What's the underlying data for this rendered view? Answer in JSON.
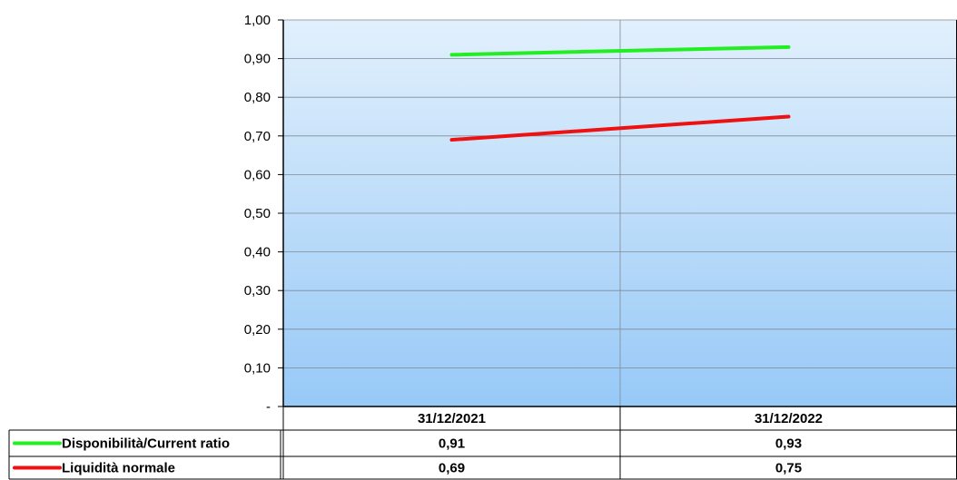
{
  "chart_data": {
    "type": "line",
    "categories": [
      "31/12/2021",
      "31/12/2022"
    ],
    "series": [
      {
        "name": "Disponibilità/Current ratio",
        "values": [
          0.91,
          0.93
        ],
        "color": "#22ee22"
      },
      {
        "name": "Liquidità normale",
        "values": [
          0.69,
          0.75
        ],
        "color": "#ee1111"
      }
    ],
    "y_ticks": [
      {
        "value": 0,
        "label": "-"
      },
      {
        "value": 0.1,
        "label": "0,10"
      },
      {
        "value": 0.2,
        "label": "0,20"
      },
      {
        "value": 0.3,
        "label": "0,30"
      },
      {
        "value": 0.4,
        "label": "0,40"
      },
      {
        "value": 0.5,
        "label": "0,50"
      },
      {
        "value": 0.6,
        "label": "0,60"
      },
      {
        "value": 0.7,
        "label": "0,70"
      },
      {
        "value": 0.8,
        "label": "0,80"
      },
      {
        "value": 0.9,
        "label": "0,90"
      },
      {
        "value": 1.0,
        "label": "1,00"
      }
    ],
    "ylim": [
      0,
      1
    ],
    "grid": true,
    "legend": "data-table-bottom",
    "data_table": {
      "rows": [
        {
          "series": "Disponibilità/Current ratio",
          "values": [
            "0,91",
            "0,93"
          ]
        },
        {
          "series": "Liquidità normale",
          "values": [
            "0,69",
            "0,75"
          ]
        }
      ]
    },
    "colors": {
      "plot_top": "#e2f0fc",
      "plot_bottom": "#97c9f7",
      "gridline": "#7f8a94"
    }
  }
}
